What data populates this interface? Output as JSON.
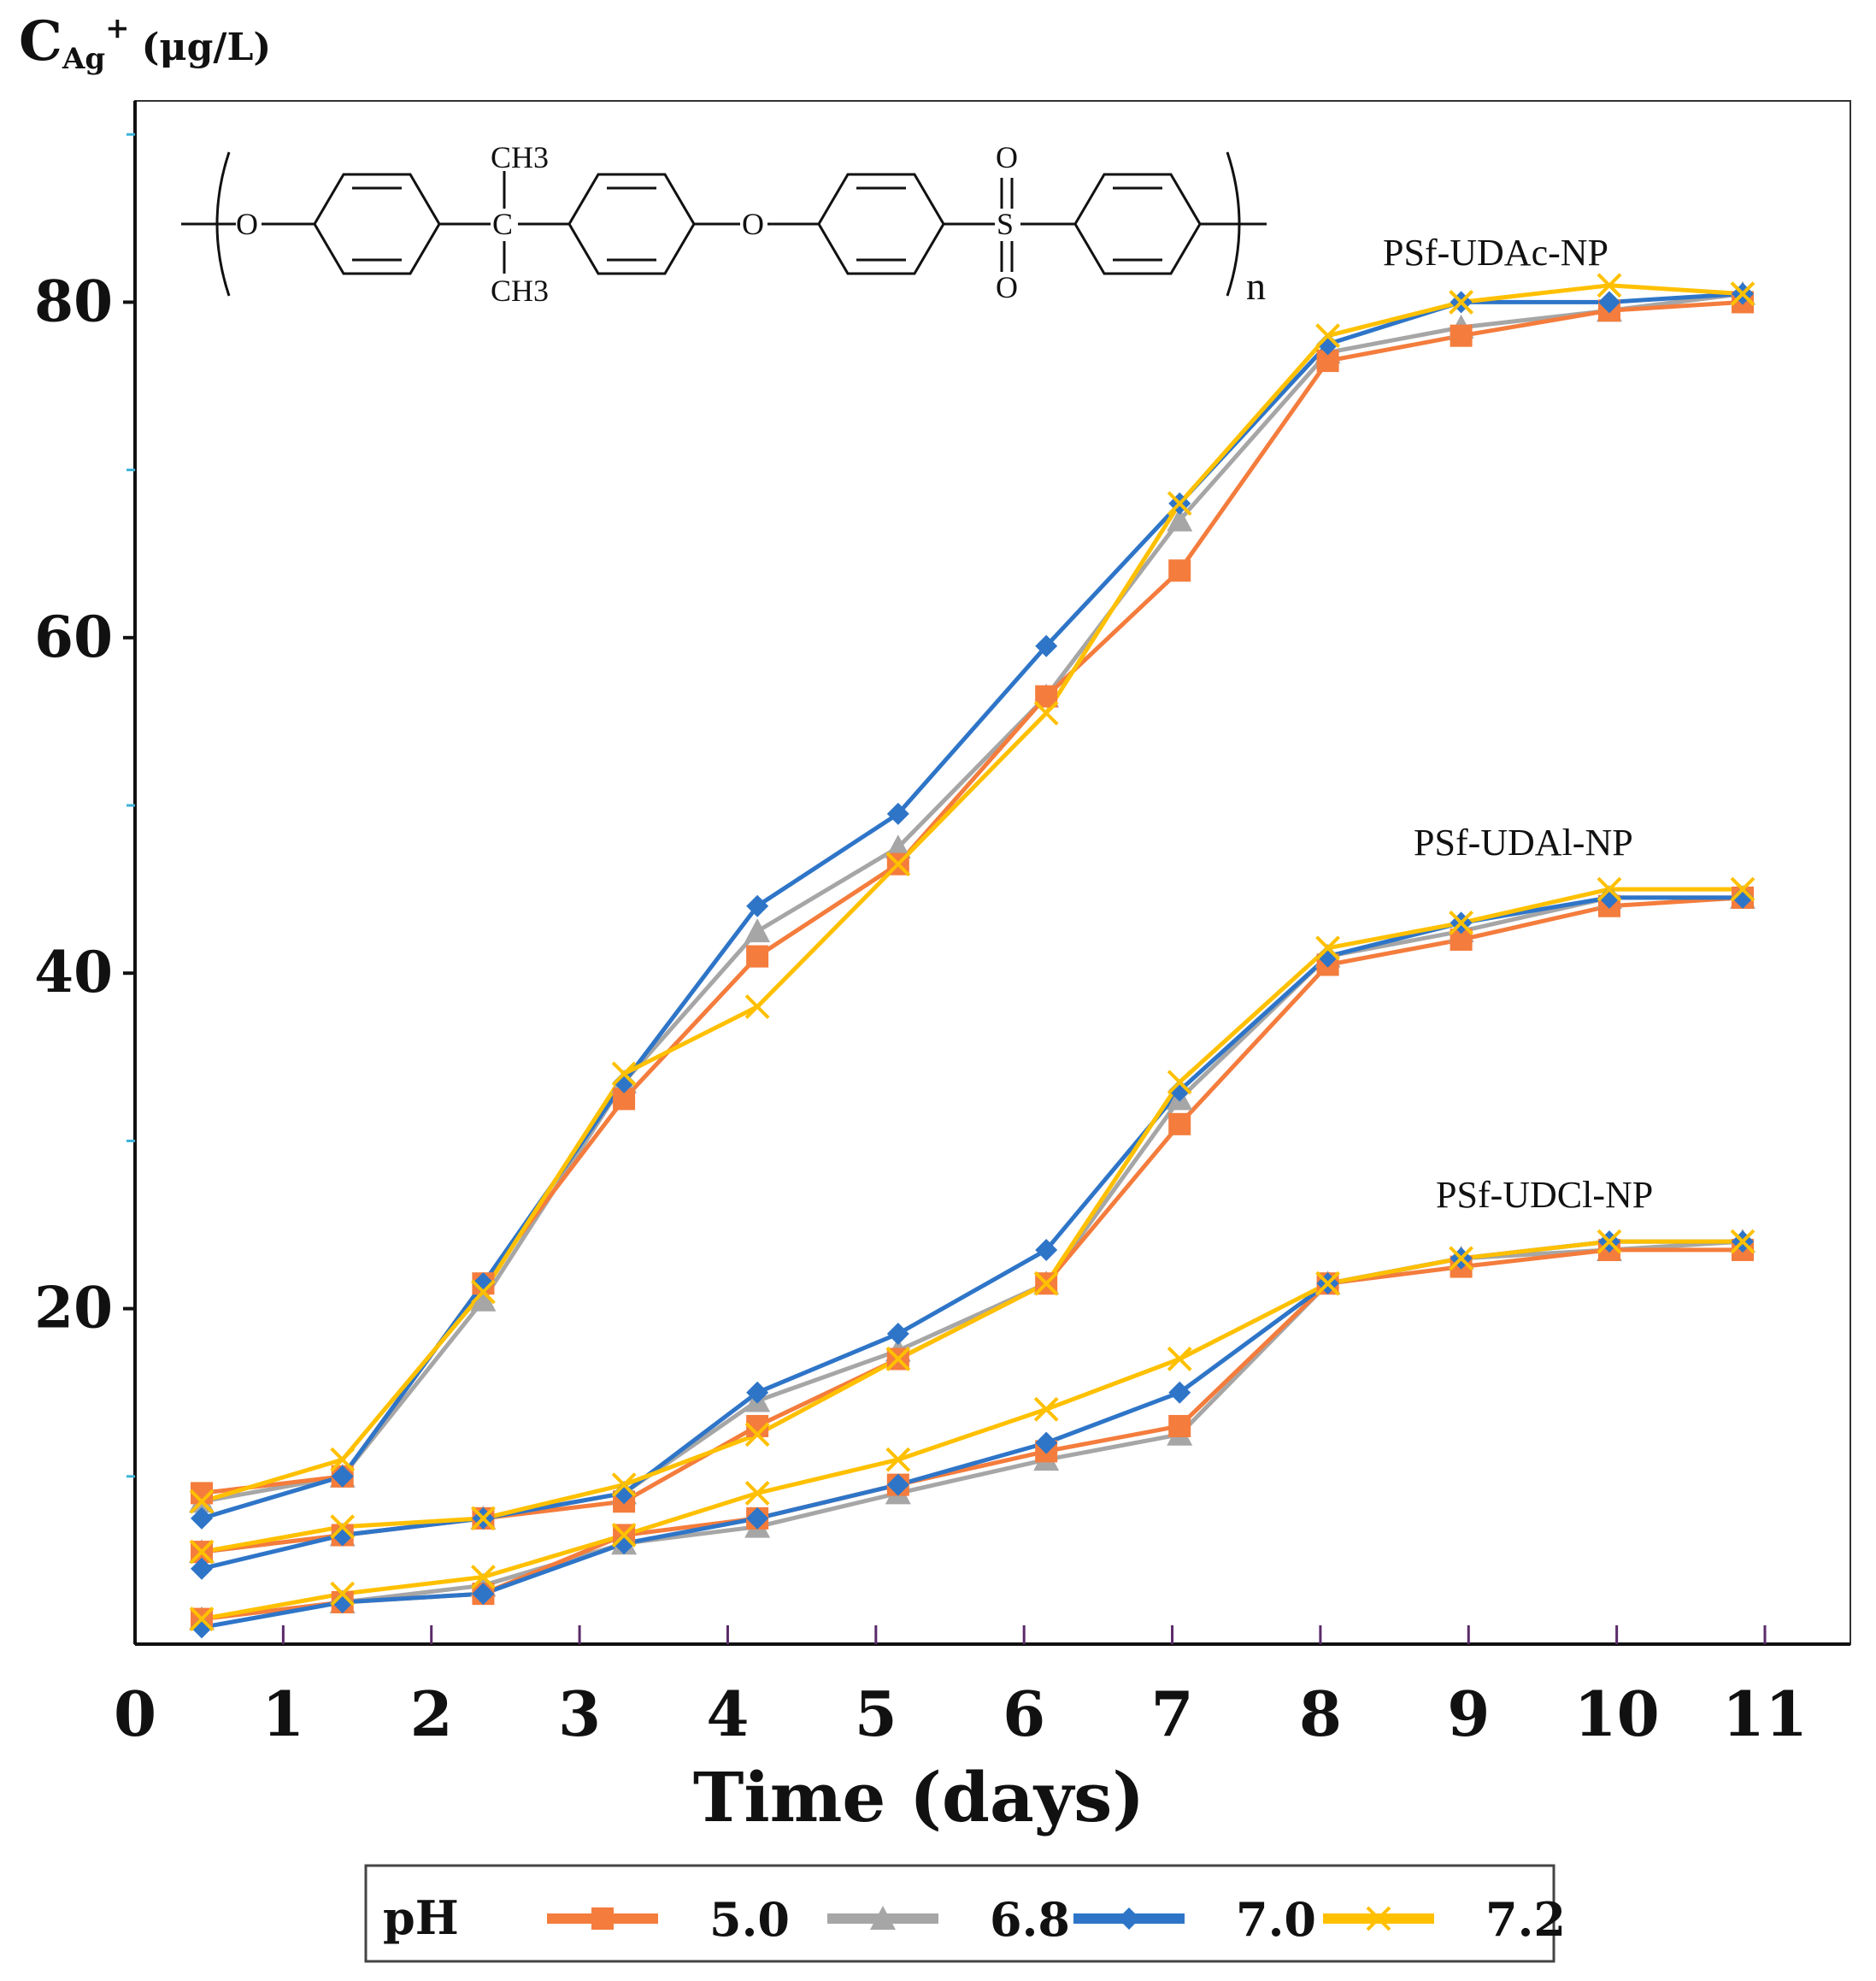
{
  "chart_data": {
    "type": "line",
    "title": "",
    "xlabel": "Time (days)",
    "ylabel": {
      "main": "C",
      "subscript": "Ag",
      "superscript": "+",
      "unit": "(μg/L)"
    },
    "xlim": [
      0,
      11
    ],
    "ylim": [
      0,
      92
    ],
    "x_ticks": [
      0,
      1,
      2,
      3,
      4,
      5,
      6,
      7,
      8,
      9,
      10,
      11
    ],
    "y_ticks_labeled": [
      20,
      40,
      60,
      80
    ],
    "y_ticks_minor": [
      10,
      30,
      50,
      70,
      90
    ],
    "legend": {
      "title": "pH",
      "position": "bottom",
      "entries": [
        "5.0",
        "6.8",
        "7.0",
        "7.2"
      ]
    },
    "series_styles": [
      {
        "legend": "5.0",
        "color": "#f47c3c",
        "marker": "square"
      },
      {
        "legend": "6.8",
        "color": "#a6a6a6",
        "marker": "triangle"
      },
      {
        "legend": "7.0",
        "color": "#2e75c8",
        "marker": "diamond"
      },
      {
        "legend": "7.2",
        "color": "#ffc000",
        "marker": "x"
      }
    ],
    "groups": [
      {
        "label": "PSf-UDAc-NP",
        "x": [
          0.45,
          1.4,
          2.35,
          3.3,
          4.2,
          5.15,
          6.15,
          7.05,
          8.05,
          8.95,
          9.95,
          10.85
        ],
        "series": [
          {
            "name": "5.0",
            "values": [
              9.0,
              10.0,
              21.5,
              32.5,
              41.0,
              46.5,
              56.5,
              64.0,
              76.5,
              78.0,
              79.5,
              80.0
            ]
          },
          {
            "name": "6.8",
            "values": [
              8.5,
              10.0,
              20.5,
              33.5,
              42.5,
              47.5,
              56.5,
              67.0,
              77.0,
              78.5,
              79.5,
              80.5
            ]
          },
          {
            "name": "7.0",
            "values": [
              7.5,
              10.0,
              21.5,
              33.5,
              44.0,
              49.5,
              59.5,
              68.0,
              77.5,
              80.0,
              80.0,
              80.5
            ]
          },
          {
            "name": "7.2",
            "values": [
              8.5,
              11.0,
              21.0,
              34.0,
              38.0,
              46.5,
              55.5,
              68.0,
              78.0,
              80.0,
              81.0,
              80.5
            ]
          }
        ]
      },
      {
        "label": "PSf-UDAl-NP",
        "x": [
          0.45,
          1.4,
          2.35,
          3.3,
          4.2,
          5.15,
          6.15,
          7.05,
          8.05,
          8.95,
          9.95,
          10.85
        ],
        "series": [
          {
            "name": "5.0",
            "values": [
              5.5,
              6.5,
              7.5,
              8.5,
              13.0,
              17.0,
              21.5,
              31.0,
              40.5,
              42.0,
              44.0,
              44.5
            ]
          },
          {
            "name": "6.8",
            "values": [
              5.5,
              6.5,
              7.5,
              9.0,
              14.5,
              17.5,
              21.5,
              32.5,
              41.0,
              42.5,
              44.5,
              44.5
            ]
          },
          {
            "name": "7.0",
            "values": [
              4.5,
              6.5,
              7.5,
              9.0,
              15.0,
              18.5,
              23.5,
              33.0,
              41.0,
              43.0,
              44.5,
              44.5
            ]
          },
          {
            "name": "7.2",
            "values": [
              5.5,
              7.0,
              7.5,
              9.5,
              12.5,
              17.0,
              21.5,
              33.5,
              41.5,
              43.0,
              45.0,
              45.0
            ]
          }
        ]
      },
      {
        "label": "PSf-UDCl-NP",
        "x": [
          0.45,
          1.4,
          2.35,
          3.3,
          4.2,
          5.15,
          6.15,
          7.05,
          8.05,
          8.95,
          9.95,
          10.85
        ],
        "series": [
          {
            "name": "5.0",
            "values": [
              1.5,
              2.5,
              3.0,
              6.5,
              7.5,
              9.5,
              11.5,
              13.0,
              21.5,
              22.5,
              23.5,
              23.5
            ]
          },
          {
            "name": "6.8",
            "values": [
              1.5,
              2.5,
              3.5,
              6.0,
              7.0,
              9.0,
              11.0,
              12.5,
              21.5,
              23.0,
              23.5,
              24.0
            ]
          },
          {
            "name": "7.0",
            "values": [
              1.0,
              2.5,
              3.0,
              6.0,
              7.5,
              9.5,
              12.0,
              15.0,
              21.5,
              23.0,
              24.0,
              24.0
            ]
          },
          {
            "name": "7.2",
            "values": [
              1.5,
              3.0,
              4.0,
              6.5,
              9.0,
              11.0,
              14.0,
              17.0,
              21.5,
              23.0,
              24.0,
              24.0
            ]
          }
        ]
      }
    ],
    "inset_structure": {
      "atoms": [
        "O",
        "C",
        "O",
        "S",
        "O",
        "O"
      ],
      "methyl_top": "CH3",
      "methyl_bottom": "CH3",
      "repeat": "n"
    }
  }
}
